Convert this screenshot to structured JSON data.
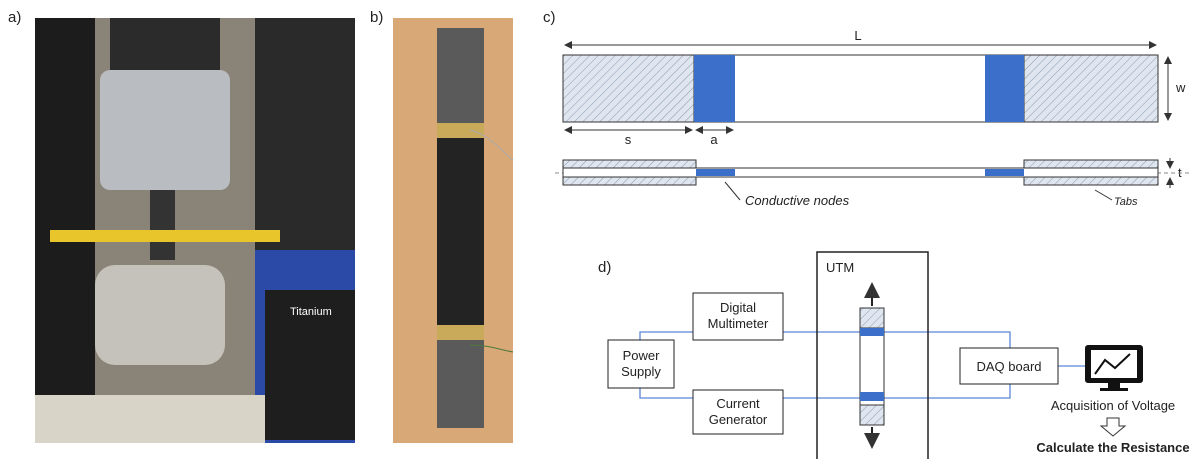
{
  "panels": {
    "a": "a)",
    "b": "b)",
    "c": "c)",
    "d": "d)"
  },
  "photo_a": {
    "brand": "Titanium"
  },
  "specimen": {
    "length": "L",
    "width": "w",
    "tab_length": "s",
    "node_width": "a",
    "thickness": "t",
    "nodes_label": "Conductive nodes",
    "tabs_label": "Tabs"
  },
  "setup": {
    "utm": "UTM",
    "multimeter": [
      "Digital",
      "Multimeter"
    ],
    "power_supply": [
      "Power",
      "Supply"
    ],
    "current_generator": [
      "Current",
      "Generator"
    ],
    "daq": "DAQ board",
    "acquisition": "Acquisition of Voltage",
    "result": "Calculate the Resistance"
  }
}
